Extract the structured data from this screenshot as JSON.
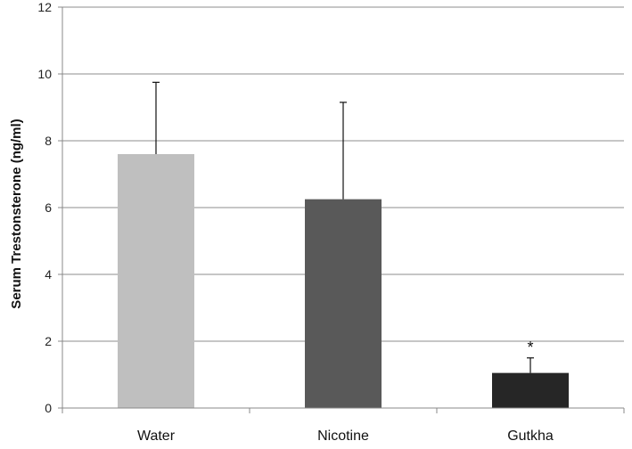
{
  "chart_data": {
    "type": "bar",
    "title": "",
    "xlabel": "",
    "ylabel": "Serum Trestonsterone (ng/ml)",
    "categories": [
      "Water",
      "Nicotine",
      "Gutkha"
    ],
    "values": [
      7.6,
      6.25,
      1.05
    ],
    "error_upper": [
      2.15,
      2.9,
      0.45
    ],
    "colors": [
      "#bfbfbf",
      "#595959",
      "#262626"
    ],
    "annotations": [
      "",
      "",
      "*"
    ],
    "ylim": [
      0,
      12
    ],
    "yticks": [
      0,
      2,
      4,
      6,
      8,
      10,
      12
    ],
    "grid": true,
    "legend": "none"
  }
}
